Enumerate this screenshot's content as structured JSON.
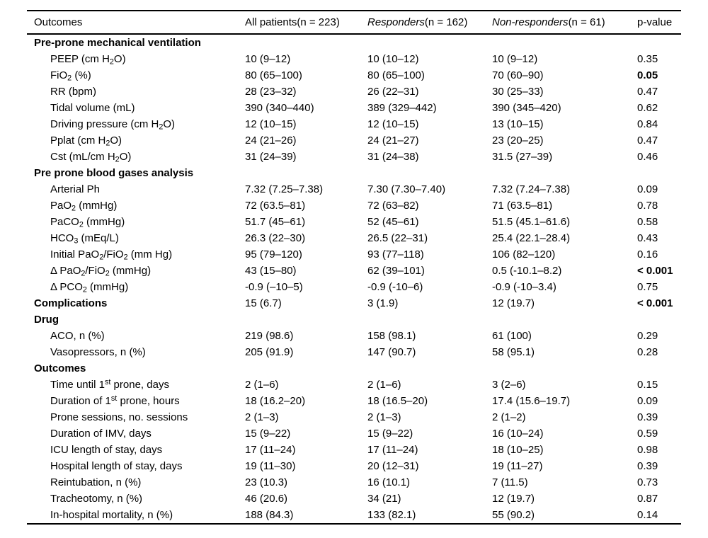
{
  "colors": {
    "text": "#000000",
    "background": "#ffffff",
    "rule": "#000000"
  },
  "table": {
    "headers": [
      {
        "label": "Outcomes"
      },
      {
        "label": "All patients(n = 223)"
      },
      {
        "label": "*Responders*(n = 162)"
      },
      {
        "label": "*Non-responders*(n = 61)"
      },
      {
        "label": "p-value"
      }
    ],
    "rows": [
      {
        "label": "Pre-prone mechanical ventilation",
        "type": "section",
        "values": [
          "",
          "",
          ""
        ],
        "p": "",
        "p_bold": false
      },
      {
        "label": "PEEP (cm H~2~O)",
        "type": "item",
        "values": [
          "10 (9–12)",
          "10 (10–12)",
          "10 (9–12)"
        ],
        "p": "0.35",
        "p_bold": false
      },
      {
        "label": "FiO~2~ (%)",
        "type": "item",
        "values": [
          "80 (65–100)",
          "80 (65–100)",
          "70 (60–90)"
        ],
        "p": "0.05",
        "p_bold": true
      },
      {
        "label": "RR (bpm)",
        "type": "item",
        "values": [
          "28 (23–32)",
          "26 (22–31)",
          "30 (25–33)"
        ],
        "p": "0.47",
        "p_bold": false
      },
      {
        "label": "Tidal volume (mL)",
        "type": "item",
        "values": [
          "390 (340–440)",
          "389 (329–442)",
          "390 (345–420)"
        ],
        "p": "0.62",
        "p_bold": false
      },
      {
        "label": "Driving pressure (cm H~2~O)",
        "type": "item",
        "values": [
          "12 (10–15)",
          "12 (10–15)",
          "13 (10–15)"
        ],
        "p": "0.84",
        "p_bold": false
      },
      {
        "label": "Pplat (cm H~2~O)",
        "type": "item",
        "values": [
          "24 (21–26)",
          "24 (21–27)",
          "23 (20–25)"
        ],
        "p": "0.47",
        "p_bold": false
      },
      {
        "label": "Cst (mL/cm H~2~O)",
        "type": "item",
        "values": [
          "31 (24–39)",
          "31 (24–38)",
          "31.5 (27–39)"
        ],
        "p": "0.46",
        "p_bold": false
      },
      {
        "label": "Pre prone blood gases analysis",
        "type": "section",
        "values": [
          "",
          "",
          ""
        ],
        "p": "",
        "p_bold": false
      },
      {
        "label": "Arterial Ph",
        "type": "item",
        "values": [
          "7.32 (7.25–7.38)",
          "7.30 (7.30–7.40)",
          "7.32 (7.24–7.38)"
        ],
        "p": "0.09",
        "p_bold": false
      },
      {
        "label": "PaO~2~ (mmHg)",
        "type": "item",
        "values": [
          "72 (63.5–81)",
          "72 (63–82)",
          "71 (63.5–81)"
        ],
        "p": "0.78",
        "p_bold": false
      },
      {
        "label": "PaCO~2~ (mmHg)",
        "type": "item",
        "values": [
          "51.7 (45–61)",
          "52 (45–61)",
          "51.5 (45.1–61.6)"
        ],
        "p": "0.58",
        "p_bold": false
      },
      {
        "label": "HCO~3~ (mEq/L)",
        "type": "item",
        "values": [
          "26.3 (22–30)",
          "26.5 (22–31)",
          "25.4 (22.1–28.4)"
        ],
        "p": "0.43",
        "p_bold": false
      },
      {
        "label": "Initial PaO~2~/FiO~2~ (mm Hg)",
        "type": "item",
        "values": [
          "95 (79–120)",
          "93 (77–118)",
          "106 (82–120)"
        ],
        "p": "0.16",
        "p_bold": false
      },
      {
        "label": "Δ PaO~2~/FiO~2~ (mmHg)",
        "type": "item",
        "values": [
          "43 (15–80)",
          "62 (39–101)",
          "0.5 (-10.1–8.2)"
        ],
        "p": "< 0.001",
        "p_bold": true
      },
      {
        "label": "Δ PCO~2~ (mmHg)",
        "type": "item",
        "values": [
          "-0.9 (–10–5)",
          "-0.9 (-10–6)",
          "-0.9 (-10–3.4)"
        ],
        "p": "0.75",
        "p_bold": false
      },
      {
        "label": "Complications",
        "type": "section",
        "values": [
          "15 (6.7)",
          "3 (1.9)",
          "12 (19.7)"
        ],
        "p": "< 0.001",
        "p_bold": true
      },
      {
        "label": "Drug",
        "type": "section",
        "values": [
          "",
          "",
          ""
        ],
        "p": "",
        "p_bold": false
      },
      {
        "label": "ACO, n (%)",
        "type": "item",
        "values": [
          "219 (98.6)",
          "158 (98.1)",
          "61 (100)"
        ],
        "p": "0.29",
        "p_bold": false
      },
      {
        "label": "Vasopressors, n (%)",
        "type": "item",
        "values": [
          "205 (91.9)",
          "147 (90.7)",
          "58 (95.1)"
        ],
        "p": "0.28",
        "p_bold": false
      },
      {
        "label": "Outcomes",
        "type": "section",
        "values": [
          "",
          "",
          ""
        ],
        "p": "",
        "p_bold": false
      },
      {
        "label": "Time until 1^st^ prone, days",
        "type": "item",
        "values": [
          "2 (1–6)",
          "2 (1–6)",
          "3 (2–6)"
        ],
        "p": "0.15",
        "p_bold": false
      },
      {
        "label": "Duration of 1^st^ prone, hours",
        "type": "item",
        "values": [
          "18 (16.2–20)",
          "18 (16.5–20)",
          "17.4 (15.6–19.7)"
        ],
        "p": "0.09",
        "p_bold": false
      },
      {
        "label": "Prone sessions, no. sessions",
        "type": "item",
        "values": [
          "2 (1–3)",
          "2 (1–3)",
          "2 (1–2)"
        ],
        "p": "0.39",
        "p_bold": false
      },
      {
        "label": "Duration of IMV, days",
        "type": "item",
        "values": [
          "15 (9–22)",
          "15 (9–22)",
          "16 (10–24)"
        ],
        "p": "0.59",
        "p_bold": false
      },
      {
        "label": "ICU length of stay, days",
        "type": "item",
        "values": [
          "17 (11–24)",
          "17 (11–24)",
          "18 (10–25)"
        ],
        "p": "0.98",
        "p_bold": false
      },
      {
        "label": "Hospital length of stay, days",
        "type": "item",
        "values": [
          "19 (11–30)",
          "20 (12–31)",
          "19 (11–27)"
        ],
        "p": "0.39",
        "p_bold": false
      },
      {
        "label": "Reintubation, n (%)",
        "type": "item",
        "values": [
          "23 (10.3)",
          "16 (10.1)",
          "7 (11.5)"
        ],
        "p": "0.73",
        "p_bold": false
      },
      {
        "label": "Tracheotomy, n (%)",
        "type": "item",
        "values": [
          "46 (20.6)",
          "34 (21)",
          "12 (19.7)"
        ],
        "p": "0.87",
        "p_bold": false
      },
      {
        "label": "In-hospital mortality, n (%)",
        "type": "item",
        "values": [
          "188 (84.3)",
          "133 (82.1)",
          "55 (90.2)"
        ],
        "p": "0.14",
        "p_bold": false
      }
    ]
  }
}
